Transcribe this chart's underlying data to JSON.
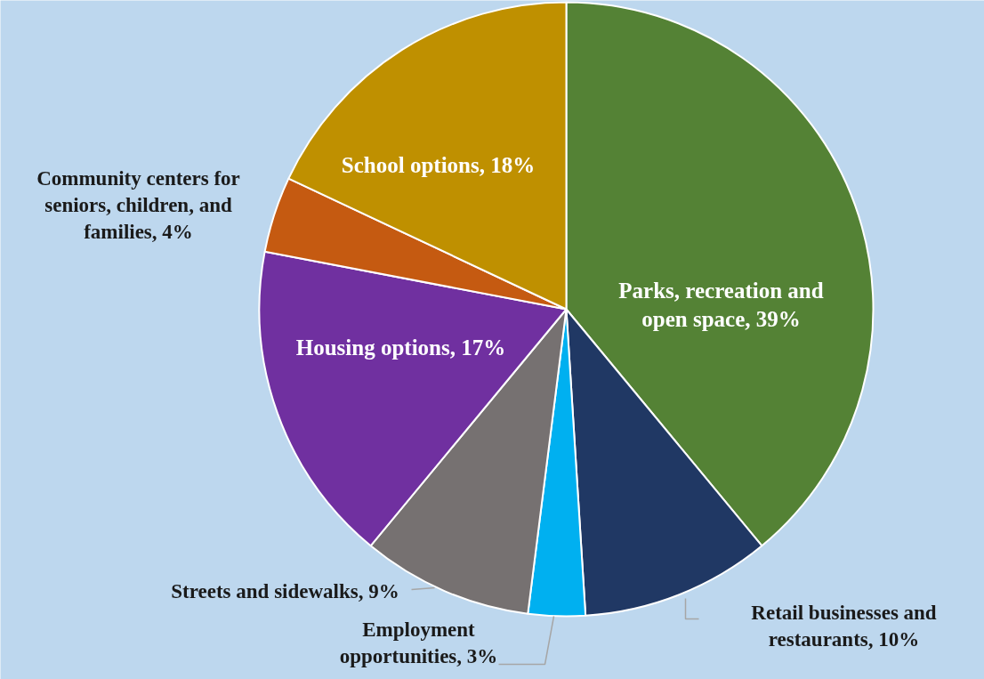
{
  "chart_data": {
    "type": "pie",
    "categories": [
      "Parks, recreation and open space",
      "Retail businesses and restaurants",
      "Employment opportunities",
      "Streets and sidewalks",
      "Housing options",
      "Community centers for seniors, children, and families",
      "School options"
    ],
    "values": [
      39,
      10,
      3,
      9,
      17,
      4,
      18
    ],
    "value_labels": [
      "39%",
      "10%",
      "3%",
      "9%",
      "17%",
      "4%",
      "18%"
    ],
    "colors": [
      "#548235",
      "#203864",
      "#00b0f0",
      "#767171",
      "#7030a0",
      "#c55a11",
      "#bf9000"
    ],
    "data_labels": true,
    "legend": false
  }
}
